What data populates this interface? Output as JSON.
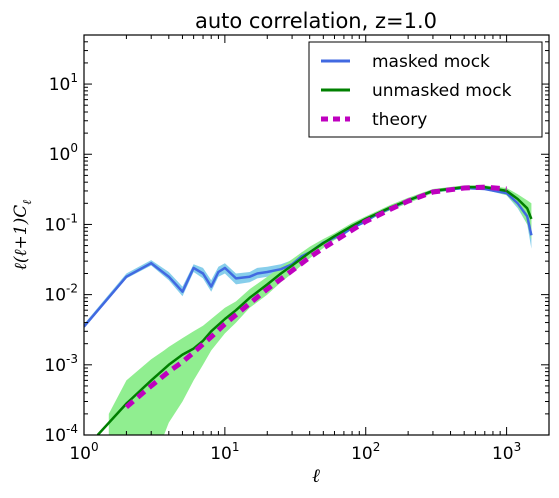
{
  "chart_data": {
    "type": "line",
    "title": "auto correlation, z=1.0",
    "xlabel": "ℓ",
    "ylabel": "ℓ(ℓ+1)C",
    "ylabel_sub": "ℓ",
    "xscale": "log",
    "yscale": "log",
    "xlim": [
      1,
      2000
    ],
    "ylim": [
      0.0001,
      50
    ],
    "x_ticks": [
      {
        "base": "10",
        "exp": "0",
        "value": 1
      },
      {
        "base": "10",
        "exp": "1",
        "value": 10
      },
      {
        "base": "10",
        "exp": "2",
        "value": 100
      },
      {
        "base": "10",
        "exp": "3",
        "value": 1000
      }
    ],
    "y_ticks": [
      {
        "base": "10",
        "exp": "-4",
        "value": 0.0001
      },
      {
        "base": "10",
        "exp": "-3",
        "value": 0.001
      },
      {
        "base": "10",
        "exp": "-2",
        "value": 0.01
      },
      {
        "base": "10",
        "exp": "-1",
        "value": 0.1
      },
      {
        "base": "10",
        "exp": "0",
        "value": 1
      },
      {
        "base": "10",
        "exp": "1",
        "value": 10
      }
    ],
    "legend_position": "top-right",
    "series": [
      {
        "name": "masked mock",
        "color": "#4169e1",
        "band_color": "#87ceeb",
        "style": "solid",
        "x": [
          1,
          2,
          3,
          4,
          5,
          6,
          7,
          8,
          9,
          10,
          12,
          15,
          17,
          20,
          25,
          30,
          35,
          40,
          50,
          60,
          70,
          80,
          100,
          120,
          150,
          200,
          300,
          500,
          700,
          1000,
          1200,
          1400,
          1500
        ],
        "y": [
          0.0035,
          0.018,
          0.028,
          0.018,
          0.011,
          0.024,
          0.02,
          0.013,
          0.021,
          0.024,
          0.017,
          0.018,
          0.02,
          0.021,
          0.023,
          0.027,
          0.035,
          0.04,
          0.055,
          0.065,
          0.075,
          0.09,
          0.11,
          0.14,
          0.17,
          0.22,
          0.3,
          0.33,
          0.32,
          0.28,
          0.2,
          0.13,
          0.07
        ],
        "band_low": [
          0.0033,
          0.017,
          0.026,
          0.016,
          0.0095,
          0.021,
          0.017,
          0.011,
          0.018,
          0.02,
          0.014,
          0.015,
          0.017,
          0.018,
          0.02,
          0.024,
          0.031,
          0.036,
          0.05,
          0.06,
          0.07,
          0.085,
          0.105,
          0.135,
          0.165,
          0.21,
          0.29,
          0.32,
          0.31,
          0.26,
          0.17,
          0.1,
          0.045
        ],
        "band_high": [
          0.0038,
          0.02,
          0.031,
          0.021,
          0.013,
          0.027,
          0.024,
          0.016,
          0.025,
          0.028,
          0.02,
          0.021,
          0.024,
          0.025,
          0.027,
          0.031,
          0.04,
          0.045,
          0.06,
          0.07,
          0.08,
          0.095,
          0.115,
          0.145,
          0.175,
          0.23,
          0.31,
          0.34,
          0.34,
          0.31,
          0.24,
          0.18,
          0.12
        ]
      },
      {
        "name": "unmasked mock",
        "color": "#008000",
        "band_color": "#90ee90",
        "style": "solid",
        "x": [
          1.25,
          2,
          3,
          4,
          5,
          6,
          7,
          8,
          10,
          12,
          15,
          20,
          25,
          30,
          40,
          50,
          60,
          80,
          100,
          150,
          200,
          300,
          500,
          700,
          1000,
          1200,
          1400,
          1500
        ],
        "y": [
          0.0001,
          0.00028,
          0.0006,
          0.001,
          0.0014,
          0.0017,
          0.0022,
          0.003,
          0.0045,
          0.006,
          0.009,
          0.014,
          0.02,
          0.026,
          0.04,
          0.054,
          0.068,
          0.095,
          0.12,
          0.175,
          0.22,
          0.3,
          0.34,
          0.34,
          0.3,
          0.23,
          0.17,
          0.12
        ],
        "band_x": [
          1.5,
          2,
          3,
          3.7,
          4,
          5,
          6,
          7,
          8,
          10,
          12,
          15,
          20,
          25,
          30,
          40,
          50,
          60,
          80,
          100,
          150,
          200,
          300,
          500,
          700,
          1000,
          1200,
          1400,
          1500
        ],
        "band_low": [
          0.0001,
          0.0001,
          0.0001,
          0.0001,
          0.00015,
          0.0003,
          0.0006,
          0.001,
          0.0016,
          0.0028,
          0.004,
          0.0065,
          0.01,
          0.015,
          0.02,
          0.033,
          0.046,
          0.06,
          0.085,
          0.11,
          0.16,
          0.2,
          0.28,
          0.32,
          0.32,
          0.26,
          0.18,
          0.1,
          0.06
        ],
        "band_high": [
          0.0002,
          0.0006,
          0.0012,
          0.0016,
          0.0018,
          0.0024,
          0.003,
          0.0036,
          0.0045,
          0.0065,
          0.008,
          0.012,
          0.018,
          0.025,
          0.032,
          0.048,
          0.062,
          0.075,
          0.105,
          0.13,
          0.19,
          0.24,
          0.32,
          0.36,
          0.36,
          0.33,
          0.27,
          0.22,
          0.2
        ]
      },
      {
        "name": "theory",
        "color": "#bf00bf",
        "style": "dashed",
        "x": [
          2,
          3,
          4,
          5,
          6,
          8,
          10,
          15,
          20,
          30,
          40,
          50,
          70,
          100,
          150,
          200,
          300,
          500,
          700,
          1000
        ],
        "y": [
          0.00025,
          0.0005,
          0.0008,
          0.0011,
          0.0015,
          0.0025,
          0.0038,
          0.0075,
          0.012,
          0.022,
          0.034,
          0.046,
          0.07,
          0.11,
          0.165,
          0.215,
          0.29,
          0.33,
          0.34,
          0.32
        ]
      }
    ]
  }
}
